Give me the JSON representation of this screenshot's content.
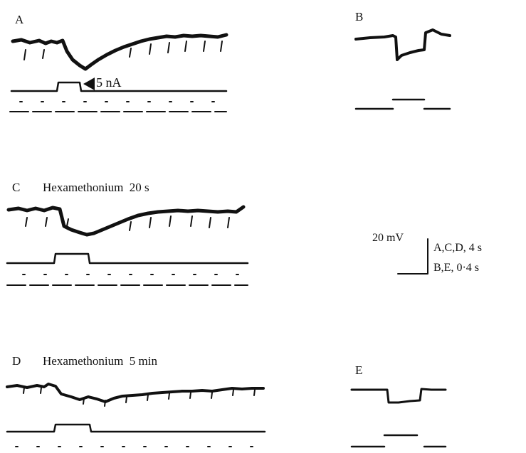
{
  "panels": {
    "A": {
      "letter": "A",
      "current_label": "5 nA"
    },
    "B": {
      "letter": "B"
    },
    "C": {
      "letter": "C",
      "condition": "Hexamethonium  20 s"
    },
    "D": {
      "letter": "D",
      "condition": "Hexamethonium  5 min"
    },
    "E": {
      "letter": "E"
    }
  },
  "scale_bar": {
    "voltage": "20 mV",
    "time_ACD": "A,C,D, 4 s",
    "time_BE": "B,E, 0·4 s"
  }
}
